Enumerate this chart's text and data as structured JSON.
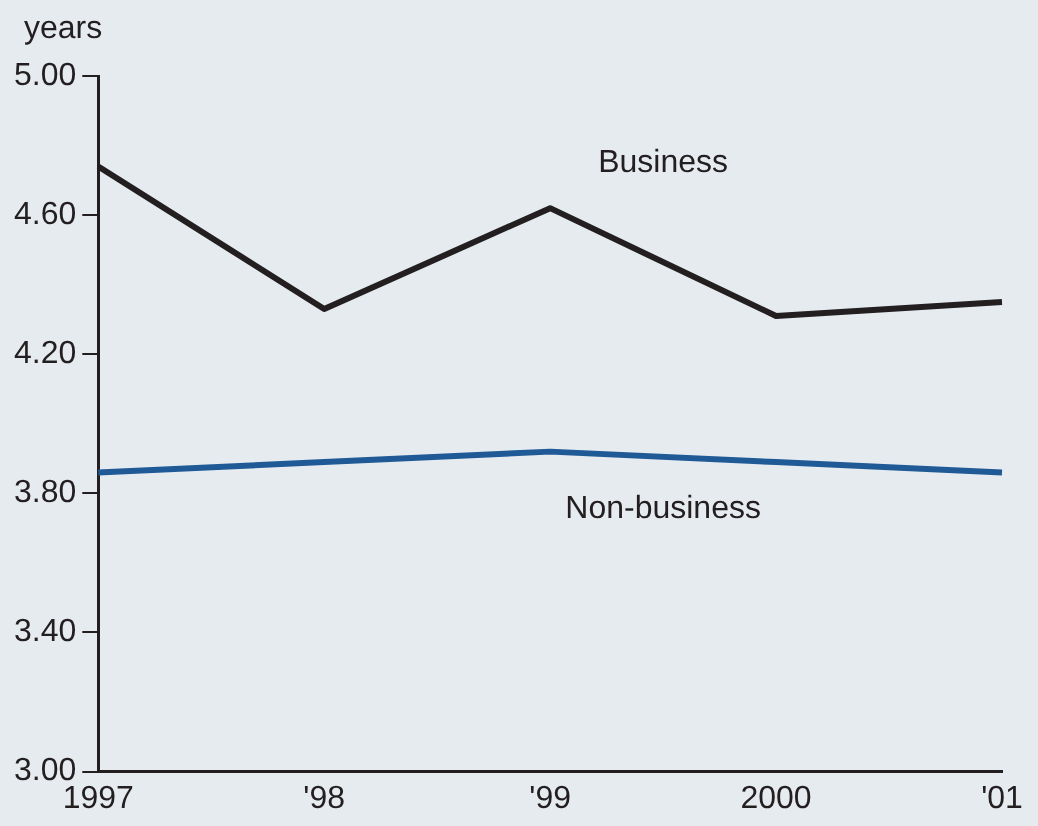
{
  "chart_data": {
    "type": "line",
    "ylabel": "years",
    "categories": [
      "1997",
      "'98",
      "'99",
      "2000",
      "'01"
    ],
    "series": [
      {
        "name": "Business",
        "color": "#231f20",
        "values": [
          4.74,
          4.33,
          4.62,
          4.31,
          4.35
        ]
      },
      {
        "name": "Non-business",
        "color": "#1f5a96",
        "values": [
          3.86,
          3.89,
          3.92,
          3.89,
          3.86
        ]
      }
    ],
    "ylim": [
      3.0,
      5.0
    ],
    "yticks": [
      {
        "value": 3.0,
        "label": "3.00"
      },
      {
        "value": 3.4,
        "label": "3.40"
      },
      {
        "value": 3.8,
        "label": "3.80"
      },
      {
        "value": 4.2,
        "label": "4.20"
      },
      {
        "value": 4.6,
        "label": "4.60"
      },
      {
        "value": 5.0,
        "label": "5.00"
      }
    ],
    "grid": false,
    "legend": false,
    "marker": "none",
    "line_style": "solid"
  }
}
